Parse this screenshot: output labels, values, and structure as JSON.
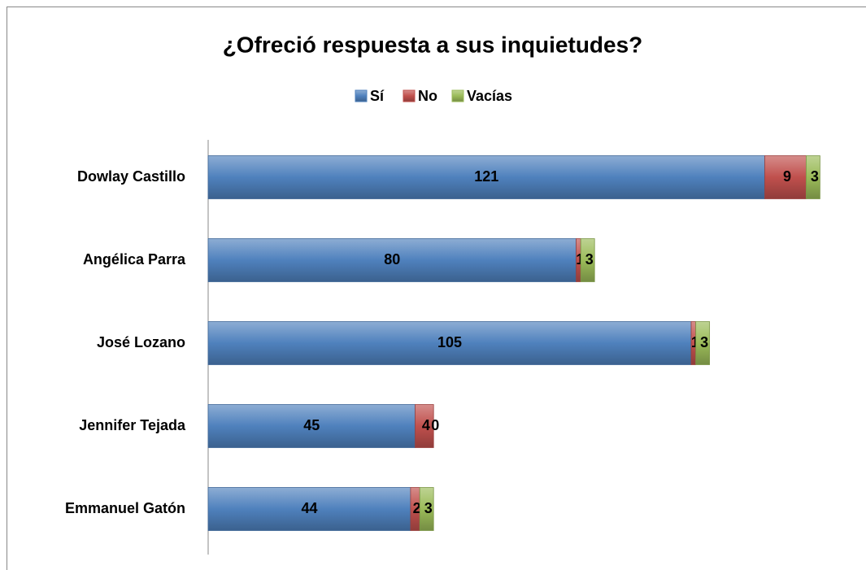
{
  "chart_data": {
    "type": "bar",
    "orientation": "horizontal",
    "stacked": true,
    "title": "¿Ofreció respuesta a sus inquietudes?",
    "categories": [
      "Dowlay Castillo",
      "Angélica Parra",
      "José Lozano",
      "Jennifer Tejada",
      "Emmanuel Gatón"
    ],
    "series": [
      {
        "name": "Sí",
        "color": "#4f81bd",
        "values": [
          121,
          80,
          105,
          45,
          44
        ]
      },
      {
        "name": "No",
        "color": "#c0504d",
        "values": [
          9,
          1,
          1,
          4,
          2
        ]
      },
      {
        "name": "Vacías",
        "color": "#9bbb59",
        "values": [
          3,
          3,
          3,
          0,
          3
        ]
      }
    ],
    "xlim": [
      0,
      140
    ],
    "legend": "top"
  }
}
